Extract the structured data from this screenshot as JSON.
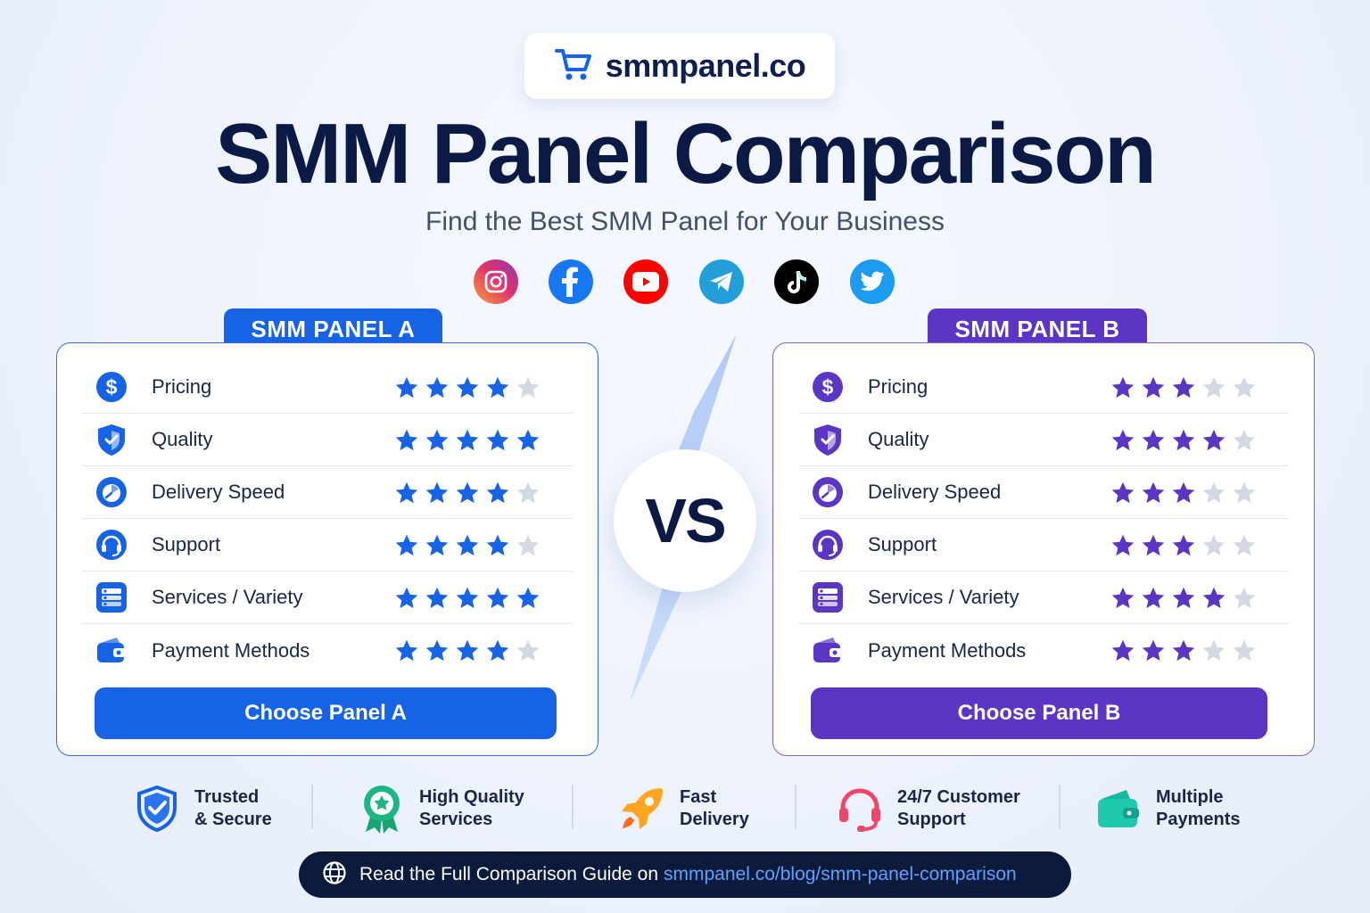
{
  "brand": {
    "name": "smmpanel.co",
    "icon": "cart-icon"
  },
  "header": {
    "title": "SMM Panel Comparison",
    "subtitle": "Find the Best SMM Panel for Your Business"
  },
  "socials": [
    {
      "name": "instagram-icon",
      "color": "#e1306c"
    },
    {
      "name": "facebook-icon",
      "color": "#1877f2"
    },
    {
      "name": "youtube-icon",
      "color": "#ff0000"
    },
    {
      "name": "telegram-icon",
      "color": "#229ed9"
    },
    {
      "name": "tiktok-icon",
      "color": "#000000"
    },
    {
      "name": "twitter-icon",
      "color": "#1d9bf0"
    }
  ],
  "panels": [
    {
      "id": "a",
      "label": "SMM PANEL A",
      "accent": "#1763e6",
      "button": "Choose Panel A",
      "criteria": [
        {
          "label": "Pricing",
          "icon": "dollar-icon",
          "stars": 4
        },
        {
          "label": "Quality",
          "icon": "shield-icon",
          "stars": 5
        },
        {
          "label": "Delivery Speed",
          "icon": "speed-icon",
          "stars": 4
        },
        {
          "label": "Support",
          "icon": "headset-icon",
          "stars": 4
        },
        {
          "label": "Services / Variety",
          "icon": "services-icon",
          "stars": 5
        },
        {
          "label": "Payment Methods",
          "icon": "wallet-icon",
          "stars": 4
        }
      ]
    },
    {
      "id": "b",
      "label": "SMM PANEL B",
      "accent": "#5b35c4",
      "button": "Choose Panel B",
      "criteria": [
        {
          "label": "Pricing",
          "icon": "dollar-icon",
          "stars": 3
        },
        {
          "label": "Quality",
          "icon": "shield-icon",
          "stars": 4
        },
        {
          "label": "Delivery Speed",
          "icon": "speed-icon",
          "stars": 3
        },
        {
          "label": "Support",
          "icon": "headset-icon",
          "stars": 3
        },
        {
          "label": "Services / Variety",
          "icon": "services-icon",
          "stars": 4
        },
        {
          "label": "Payment Methods",
          "icon": "wallet-icon",
          "stars": 3
        }
      ]
    }
  ],
  "max_stars": 5,
  "vs_label": "VS",
  "features": [
    {
      "line1": "Trusted",
      "line2": "& Secure",
      "icon": "shield-check-icon"
    },
    {
      "line1": "High Quality",
      "line2": "Services",
      "icon": "award-icon"
    },
    {
      "line1": "Fast",
      "line2": "Delivery",
      "icon": "rocket-icon"
    },
    {
      "line1": "24/7 Customer",
      "line2": "Support",
      "icon": "headset-icon"
    },
    {
      "line1": "Multiple",
      "line2": "Payments",
      "icon": "wallet-icon"
    }
  ],
  "footer": {
    "text": "Read the Full Comparison Guide on",
    "link": "smmpanel.co/blog/smm-panel-comparison",
    "icon": "globe-icon"
  }
}
